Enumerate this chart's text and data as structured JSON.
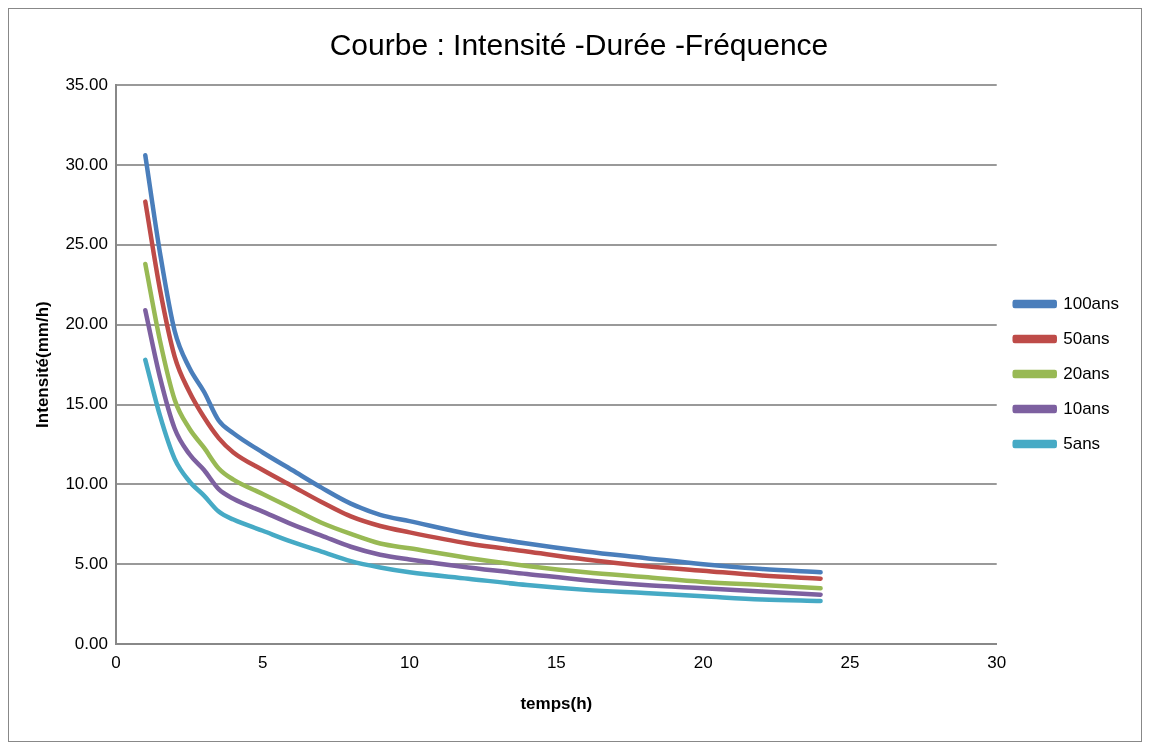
{
  "chart_data": {
    "type": "line",
    "title": "Courbe : Intensité -Durée -Fréquence",
    "xlabel": "temps(h)",
    "ylabel": "Intensité(mm/h)",
    "x": [
      1,
      1.5,
      2,
      2.5,
      3,
      3.5,
      4,
      5,
      6,
      7,
      8,
      9,
      10,
      12,
      14,
      16,
      18,
      20,
      22,
      24
    ],
    "series": [
      {
        "name": "100ans",
        "color": "#4a7ebb",
        "values": [
          30.6,
          24.5,
          19.6,
          17.3,
          15.8,
          14.0,
          13.2,
          12.0,
          10.9,
          9.8,
          8.8,
          8.1,
          7.7,
          6.9,
          6.3,
          5.8,
          5.4,
          5.0,
          4.7,
          4.5
        ]
      },
      {
        "name": "50ans",
        "color": "#be4b48",
        "values": [
          27.7,
          22.2,
          18.0,
          15.8,
          14.2,
          12.9,
          12.0,
          10.9,
          9.9,
          8.9,
          8.0,
          7.4,
          7.0,
          6.3,
          5.8,
          5.3,
          4.9,
          4.6,
          4.3,
          4.1
        ]
      },
      {
        "name": "20ans",
        "color": "#98b954",
        "values": [
          23.8,
          19.0,
          15.3,
          13.5,
          12.3,
          11.0,
          10.3,
          9.4,
          8.5,
          7.6,
          6.9,
          6.3,
          6.0,
          5.4,
          4.9,
          4.5,
          4.2,
          3.9,
          3.7,
          3.5
        ]
      },
      {
        "name": "10ans",
        "color": "#7d60a0",
        "values": [
          20.9,
          16.7,
          13.5,
          11.9,
          10.9,
          9.7,
          9.1,
          8.3,
          7.5,
          6.8,
          6.1,
          5.6,
          5.3,
          4.8,
          4.4,
          4.0,
          3.7,
          3.5,
          3.3,
          3.1
        ]
      },
      {
        "name": "5ans",
        "color": "#46aac5",
        "values": [
          17.8,
          14.3,
          11.6,
          10.2,
          9.3,
          8.3,
          7.8,
          7.1,
          6.4,
          5.8,
          5.2,
          4.8,
          4.5,
          4.1,
          3.7,
          3.4,
          3.2,
          3.0,
          2.8,
          2.7
        ]
      }
    ],
    "xlim": [
      0,
      30
    ],
    "xticks": [
      0,
      5,
      10,
      15,
      20,
      25,
      30
    ],
    "ylim": [
      0,
      35
    ],
    "yticks": [
      {
        "value": 0,
        "label": "0.00"
      },
      {
        "value": 5,
        "label": "5.00"
      },
      {
        "value": 10,
        "label": "10.00"
      },
      {
        "value": 15,
        "label": "15.00"
      },
      {
        "value": 20,
        "label": "20.00"
      },
      {
        "value": 25,
        "label": "25.00"
      },
      {
        "value": 30,
        "label": "30.00"
      },
      {
        "value": 35,
        "label": "35.00"
      }
    ],
    "grid": "y",
    "legend": "right",
    "marker": "none",
    "line_style": "solid"
  }
}
